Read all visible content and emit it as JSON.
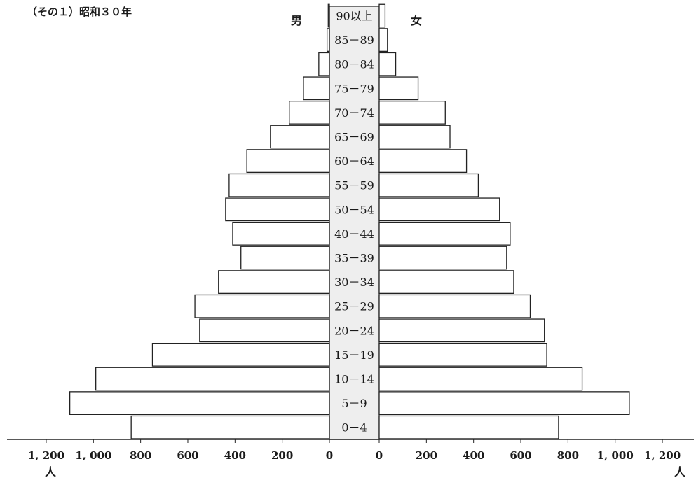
{
  "title": "（その１）昭和３０年",
  "chart_data": {
    "type": "bar",
    "subtype": "population-pyramid",
    "title": "（その１）昭和３０年",
    "left_label": "男",
    "right_label": "女",
    "unit": "人",
    "categories": [
      "0－4",
      "5－9",
      "10－14",
      "15－19",
      "20－24",
      "25－29",
      "30－34",
      "35－39",
      "40－44",
      "50－54",
      "55－59",
      "60－64",
      "65－69",
      "70－74",
      "75－79",
      "80－84",
      "85－89",
      "90以上"
    ],
    "series": [
      {
        "name": "男",
        "values": [
          840,
          1100,
          990,
          750,
          550,
          570,
          470,
          375,
          410,
          440,
          425,
          350,
          250,
          170,
          110,
          45,
          10,
          5
        ]
      },
      {
        "name": "女",
        "values": [
          760,
          1060,
          860,
          710,
          700,
          640,
          570,
          540,
          555,
          510,
          420,
          370,
          300,
          280,
          165,
          70,
          35,
          25
        ]
      }
    ],
    "xlim": [
      0,
      1200
    ],
    "male_ticks": [
      "1, 200",
      "1, 000",
      "800",
      "600",
      "400",
      "200",
      "0"
    ],
    "female_ticks": [
      "0",
      "200",
      "400",
      "600",
      "800",
      "1, 000",
      "1, 200"
    ],
    "grid": false,
    "colors": {
      "bar_fill": "#ffffff",
      "bar_stroke": "#222222",
      "center_fill": "#eeeeee"
    }
  }
}
